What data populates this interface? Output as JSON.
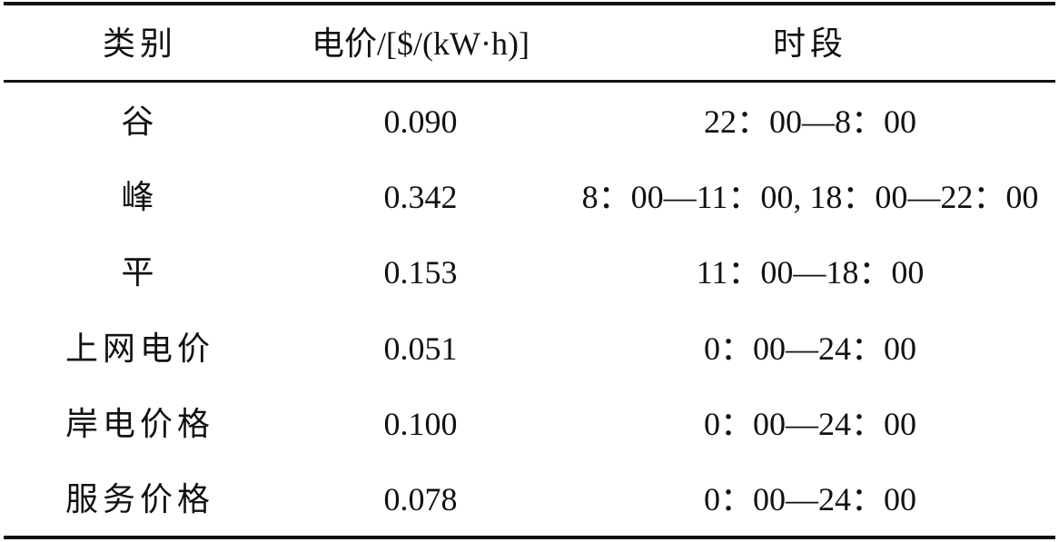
{
  "table": {
    "headers": [
      "类别",
      "电价/[$/(kW·h)]",
      "时段"
    ],
    "rows": [
      [
        "谷",
        "0.090",
        "22：00—8：00"
      ],
      [
        "峰",
        "0.342",
        "8：00—11：00, 18：00—22：00"
      ],
      [
        "平",
        "0.153",
        "11：00—18：00"
      ],
      [
        "上网电价",
        "0.051",
        "0：00—24：00"
      ],
      [
        "岸电价格",
        "0.100",
        "0：00—24：00"
      ],
      [
        "服务价格",
        "0.078",
        "0：00—24：00"
      ]
    ]
  }
}
